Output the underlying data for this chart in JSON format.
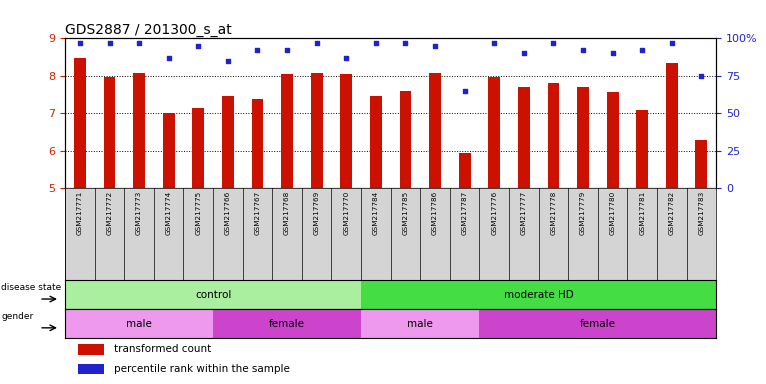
{
  "title": "GDS2887 / 201300_s_at",
  "samples": [
    "GSM217771",
    "GSM217772",
    "GSM217773",
    "GSM217774",
    "GSM217775",
    "GSM217766",
    "GSM217767",
    "GSM217768",
    "GSM217769",
    "GSM217770",
    "GSM217784",
    "GSM217785",
    "GSM217786",
    "GSM217787",
    "GSM217776",
    "GSM217777",
    "GSM217778",
    "GSM217779",
    "GSM217780",
    "GSM217781",
    "GSM217782",
    "GSM217783"
  ],
  "transformed_count": [
    8.48,
    7.97,
    8.07,
    7.01,
    7.15,
    7.45,
    7.38,
    8.06,
    8.07,
    8.06,
    7.47,
    7.6,
    8.07,
    5.93,
    7.97,
    7.7,
    7.8,
    7.7,
    7.57,
    7.1,
    8.35,
    6.28
  ],
  "percentile_rank": [
    97,
    97,
    97,
    87,
    95,
    85,
    92,
    92,
    97,
    87,
    97,
    97,
    95,
    65,
    97,
    90,
    97,
    92,
    90,
    92,
    97,
    75
  ],
  "bar_color": "#cc1100",
  "dot_color": "#2222cc",
  "ylim": [
    5,
    9
  ],
  "yticks_left": [
    5,
    6,
    7,
    8,
    9
  ],
  "yticks_right": [
    0,
    25,
    50,
    75,
    100
  ],
  "ylabel_left_color": "#cc2200",
  "ylabel_right_color": "#2222cc",
  "disease_state_groups": [
    {
      "label": "control",
      "start": 0,
      "end": 10,
      "color": "#aaeea0"
    },
    {
      "label": "moderate HD",
      "start": 10,
      "end": 22,
      "color": "#44dd44"
    }
  ],
  "gender_groups": [
    {
      "label": "male",
      "start": 0,
      "end": 5,
      "color": "#ee99ee"
    },
    {
      "label": "female",
      "start": 5,
      "end": 10,
      "color": "#cc44cc"
    },
    {
      "label": "male",
      "start": 10,
      "end": 14,
      "color": "#ee99ee"
    },
    {
      "label": "female",
      "start": 14,
      "end": 22,
      "color": "#cc44cc"
    }
  ],
  "bar_width": 0.4,
  "background_color": "#ffffff",
  "legend_items": [
    {
      "label": "transformed count",
      "color": "#cc1100"
    },
    {
      "label": "percentile rank within the sample",
      "color": "#2222cc"
    }
  ]
}
